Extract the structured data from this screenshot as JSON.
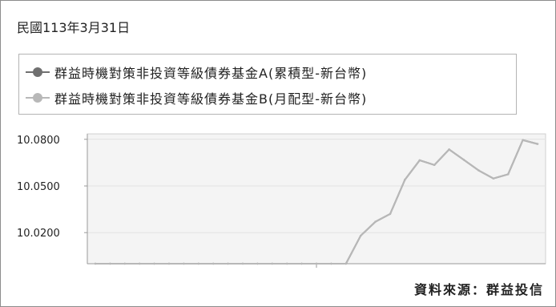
{
  "date_label": "民國113年3月31日",
  "source_label": "資料來源：群益投信",
  "colors": {
    "series_a": "#707070",
    "series_b": "#b8b8b8",
    "grid": "#e2e2e2",
    "plot_fill": "#f4f4f4",
    "axis": "#9a9a9a"
  },
  "chart_data": {
    "type": "line",
    "x": [
      1,
      2,
      3,
      4,
      5,
      6,
      7,
      8,
      9,
      10,
      11,
      12,
      13,
      14,
      15,
      16,
      17,
      18,
      19,
      20,
      21,
      22,
      23,
      24,
      25,
      26,
      27,
      28,
      29,
      30,
      31
    ],
    "ylim": [
      10.0,
      10.0835
    ],
    "yticks": [
      {
        "value": 10.08,
        "label": "10.0800"
      },
      {
        "value": 10.05,
        "label": "10.0500"
      },
      {
        "value": 10.02,
        "label": "10.0200"
      }
    ],
    "grid": "horizontal",
    "legend_position": "top",
    "series": [
      {
        "name": "群益時機對策非投資等級債券基金A(累積型-新台幣)",
        "color": "#707070",
        "values": [
          10.0,
          10.0,
          10.0,
          10.0,
          10.0,
          10.0,
          10.0,
          10.0,
          10.0,
          10.0,
          10.0,
          10.0,
          10.0,
          10.0,
          10.0,
          10.0,
          10.0,
          10.0,
          10.018,
          10.027,
          10.032,
          10.054,
          10.0665,
          10.0635,
          10.0735,
          10.0668,
          10.06,
          10.0548,
          10.0575,
          10.0795,
          10.077
        ]
      },
      {
        "name": "群益時機對策非投資等級債券基金B(月配型-新台幣)",
        "color": "#b8b8b8",
        "values": [
          10.0,
          10.0,
          10.0,
          10.0,
          10.0,
          10.0,
          10.0,
          10.0,
          10.0,
          10.0,
          10.0,
          10.0,
          10.0,
          10.0,
          10.0,
          10.0,
          10.0,
          10.0,
          10.018,
          10.027,
          10.032,
          10.054,
          10.0665,
          10.0635,
          10.0735,
          10.0668,
          10.06,
          10.0548,
          10.0575,
          10.0795,
          10.077
        ]
      }
    ]
  }
}
